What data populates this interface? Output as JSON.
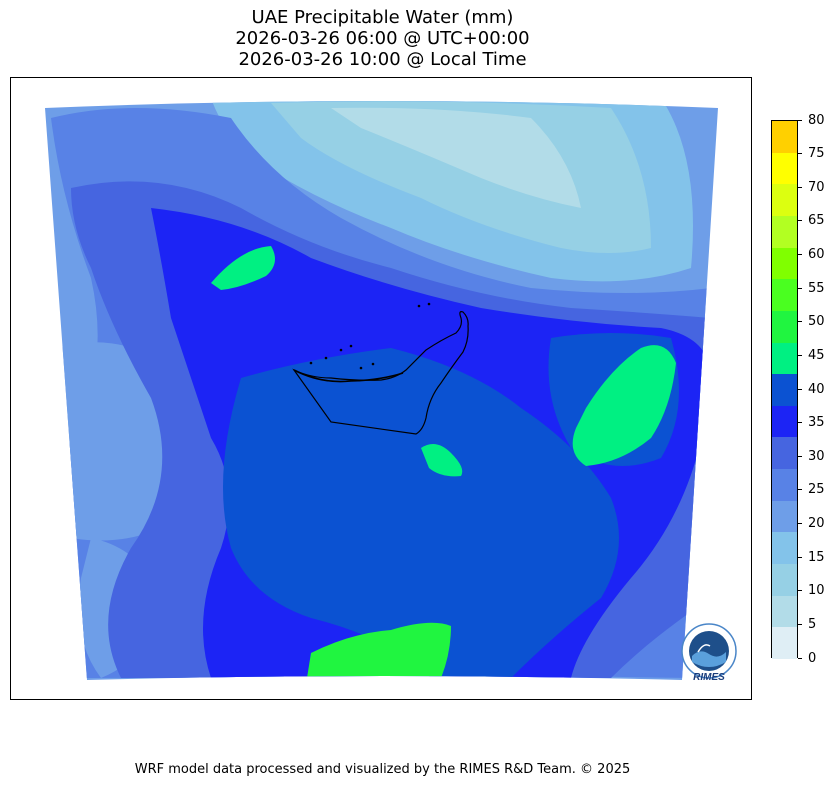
{
  "title": {
    "line1": "UAE Precipitable Water (mm)",
    "line2": "2026-03-26 06:00 @ UTC+00:00",
    "line3": "2026-03-26 10:00 @ Local Time"
  },
  "colorbar": {
    "levels": [
      0,
      5,
      10,
      15,
      20,
      25,
      30,
      35,
      40,
      45,
      50,
      55,
      60,
      65,
      70,
      75,
      80
    ],
    "colors": [
      "#dfeef5",
      "#b2dce8",
      "#96d0e5",
      "#83c3ea",
      "#6e9ee8",
      "#5882e6",
      "#4665e0",
      "#1c24f5",
      "#0b52d2",
      "#00f082",
      "#20f540",
      "#4aff20",
      "#80ff00",
      "#b2ff22",
      "#dcff10",
      "#ffff00",
      "#ffd000"
    ],
    "labels": [
      "0",
      "5",
      "10",
      "15",
      "20",
      "25",
      "30",
      "35",
      "40",
      "45",
      "50",
      "55",
      "60",
      "65",
      "70",
      "75",
      "80"
    ]
  },
  "logo": {
    "text": "RIMES"
  },
  "footer": "WRF model data processed and visualized by the RIMES R&D Team. © 2025"
}
